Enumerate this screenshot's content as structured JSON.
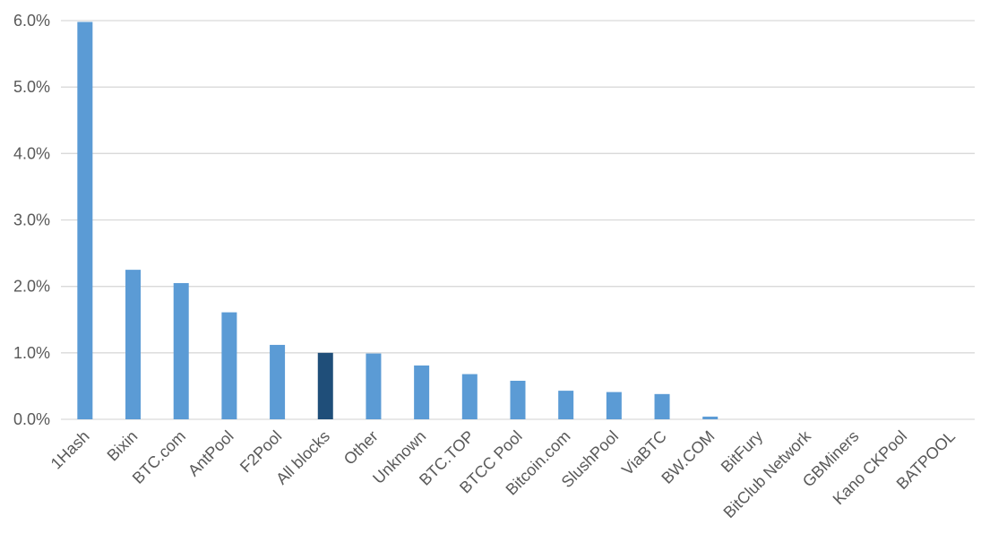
{
  "chart_data": {
    "type": "bar",
    "title": "",
    "xlabel": "",
    "ylabel": "",
    "ylim": [
      0,
      6
    ],
    "y_ticks": [
      0,
      1,
      2,
      3,
      4,
      5,
      6
    ],
    "y_tick_labels": [
      "0.0%",
      "1.0%",
      "2.0%",
      "3.0%",
      "4.0%",
      "5.0%",
      "6.0%"
    ],
    "grid": true,
    "legend": "none",
    "categories": [
      "1Hash",
      "Bixin",
      "BTC.com",
      "AntPool",
      "F2Pool",
      "All blocks",
      "Other",
      "Unknown",
      "BTC.TOP",
      "BTCC Pool",
      "Bitcoin.com",
      "SlushPool",
      "ViaBTC",
      "BW.COM",
      "BitFury",
      "BitClub Network",
      "GBMiners",
      "Kano CKPool",
      "BATPOOL"
    ],
    "values": [
      5.98,
      2.25,
      2.05,
      1.61,
      1.12,
      1.0,
      0.99,
      0.81,
      0.68,
      0.58,
      0.43,
      0.41,
      0.38,
      0.04,
      0.0,
      0.0,
      0.0,
      0.0,
      0.0
    ],
    "colors": {
      "bar": "#5b9bd5",
      "highlight": "#1f4e79",
      "highlight_category": "All blocks",
      "grid": "#d9d9d9",
      "text": "#595959"
    }
  }
}
